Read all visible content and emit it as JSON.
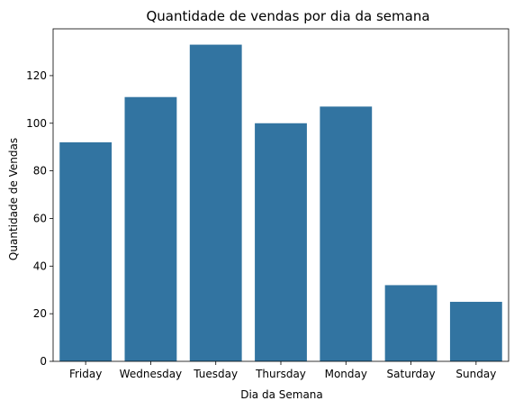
{
  "chart_data": {
    "type": "bar",
    "title": "Quantidade de vendas por dia da semana",
    "xlabel": "Dia da Semana",
    "ylabel": "Quantidade de Vendas",
    "categories": [
      "Friday",
      "Wednesday",
      "Tuesday",
      "Thursday",
      "Monday",
      "Saturday",
      "Sunday"
    ],
    "values": [
      92,
      111,
      133,
      100,
      107,
      32,
      25
    ],
    "ylim": [
      0,
      139.65
    ],
    "yticks": [
      0,
      20,
      40,
      60,
      80,
      100,
      120
    ],
    "grid": false,
    "legend": "none",
    "colors": {
      "bar": "#3274a1",
      "axis": "#000000",
      "background": "#ffffff"
    }
  }
}
